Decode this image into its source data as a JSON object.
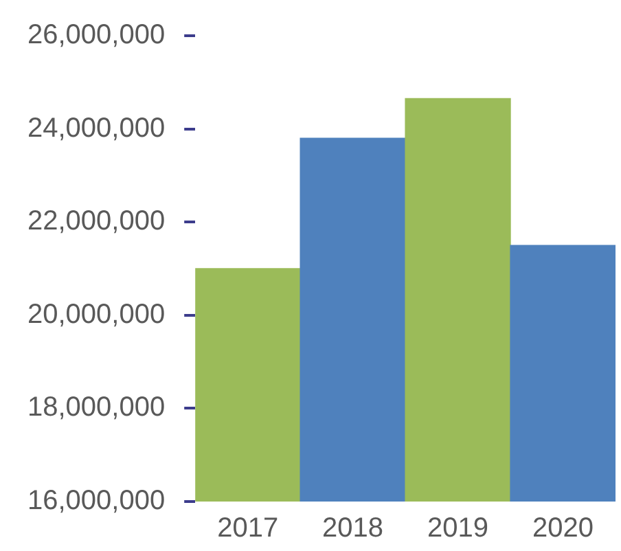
{
  "chart_data": {
    "type": "bar",
    "categories": [
      "2017",
      "2018",
      "2019",
      "2020"
    ],
    "values": [
      21000000,
      23800000,
      24650000,
      21500000
    ],
    "colors": [
      "#9bbb59",
      "#4f81bd",
      "#9bbb59",
      "#4f81bd"
    ],
    "ylim": [
      16000000,
      26000000
    ],
    "yticks": [
      {
        "value": 16000000,
        "label": "16,000,000"
      },
      {
        "value": 18000000,
        "label": "18,000,000"
      },
      {
        "value": 20000000,
        "label": "20,000,000"
      },
      {
        "value": 22000000,
        "label": "22,000,000"
      },
      {
        "value": 24000000,
        "label": "24,000,000"
      },
      {
        "value": 26000000,
        "label": "26,000,000"
      }
    ]
  }
}
